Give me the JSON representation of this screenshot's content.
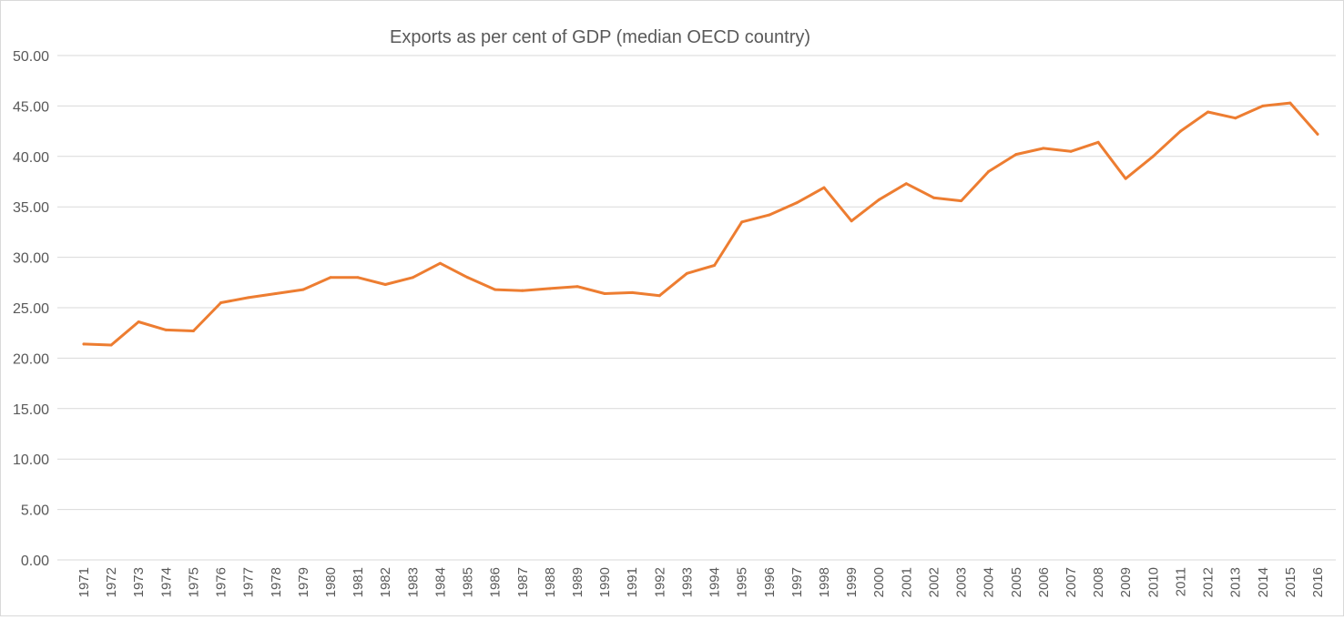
{
  "chart_data": {
    "type": "line",
    "title": "Exports as per cent of GDP (median OECD country)",
    "xlabel": "",
    "ylabel": "",
    "ylim": [
      0,
      50
    ],
    "yticks": [
      "0.00",
      "5.00",
      "10.00",
      "15.00",
      "20.00",
      "25.00",
      "30.00",
      "35.00",
      "40.00",
      "45.00",
      "50.00"
    ],
    "grid": true,
    "legend": "none",
    "line_color": "#ED7D31",
    "categories": [
      "1971",
      "1972",
      "1973",
      "1974",
      "1975",
      "1976",
      "1977",
      "1978",
      "1979",
      "1980",
      "1981",
      "1982",
      "1983",
      "1984",
      "1985",
      "1986",
      "1987",
      "1988",
      "1989",
      "1990",
      "1991",
      "1992",
      "1993",
      "1994",
      "1995",
      "1996",
      "1997",
      "1998",
      "1999",
      "2000",
      "2001",
      "2002",
      "2003",
      "2004",
      "2005",
      "2006",
      "2007",
      "2008",
      "2009",
      "2010",
      "2011",
      "2012",
      "2013",
      "2014",
      "2015",
      "2016"
    ],
    "values": [
      21.4,
      21.3,
      23.6,
      22.8,
      22.7,
      25.5,
      26.0,
      26.4,
      26.8,
      28.0,
      28.0,
      27.3,
      28.0,
      29.4,
      28.0,
      26.8,
      26.7,
      26.9,
      27.1,
      26.4,
      26.5,
      26.2,
      28.4,
      29.2,
      33.5,
      34.2,
      35.4,
      36.9,
      33.6,
      35.7,
      37.3,
      35.9,
      35.6,
      38.5,
      40.2,
      40.8,
      40.5,
      41.4,
      37.8,
      40.0,
      42.5,
      44.4,
      43.8,
      45.0,
      45.3,
      42.2
    ]
  }
}
